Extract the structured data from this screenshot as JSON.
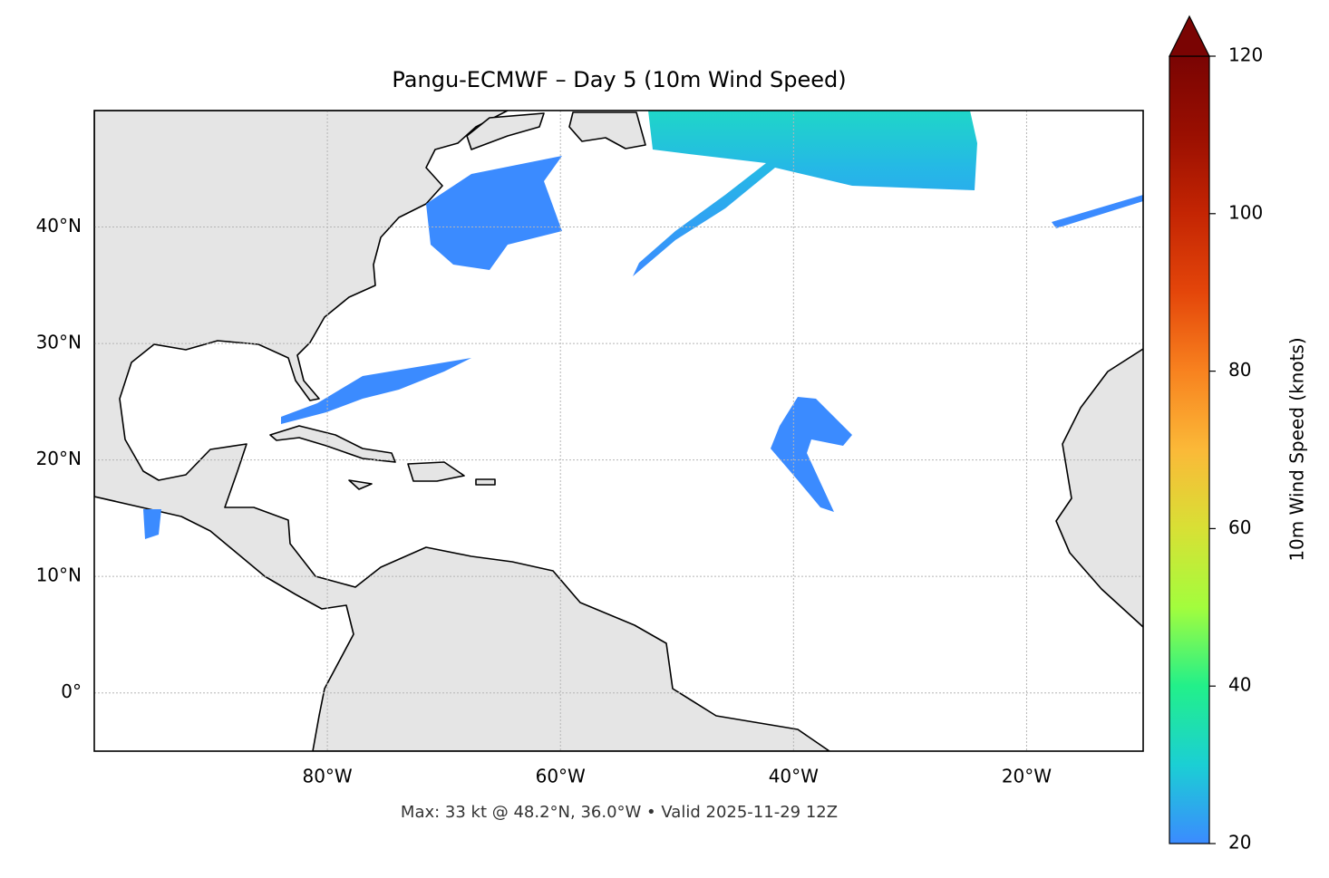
{
  "chart_data": {
    "type": "map",
    "title": "Pangu-ECMWF – Day 5 (10m Wind Speed)",
    "annotation": "Max: 33 kt @ 48.2°N, 36.0°W • Valid 2025-11-29 12Z",
    "xlim": [
      -100,
      -10
    ],
    "ylim": [
      -5,
      50
    ],
    "xticks": [
      {
        "value": -80,
        "label": "80°W"
      },
      {
        "value": -60,
        "label": "60°W"
      },
      {
        "value": -40,
        "label": "40°W"
      },
      {
        "value": -20,
        "label": "20°W"
      }
    ],
    "yticks": [
      {
        "value": 0,
        "label": "0°"
      },
      {
        "value": 10,
        "label": "10°N"
      },
      {
        "value": 20,
        "label": "20°N"
      },
      {
        "value": 30,
        "label": "30°N"
      },
      {
        "value": 40,
        "label": "40°N"
      }
    ],
    "grid": true,
    "colorbar": {
      "label": "10m Wind Speed (knots)",
      "lim": [
        20,
        120
      ],
      "ticks": [
        20,
        40,
        60,
        80,
        100,
        120
      ],
      "colors": [
        "#3b8bff",
        "#1bcfd4",
        "#22f08a",
        "#a3fd3d",
        "#d8e035",
        "#fbb938",
        "#f8821f",
        "#e4460a",
        "#c42503",
        "#9a0f01",
        "#7a0403"
      ],
      "extend": "max"
    }
  }
}
